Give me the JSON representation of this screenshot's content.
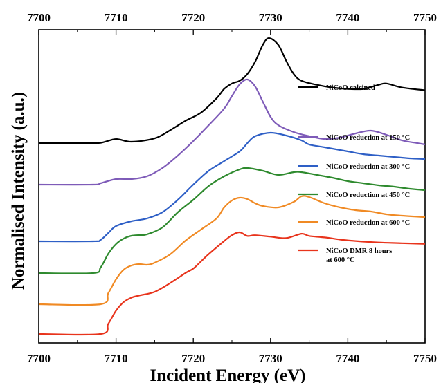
{
  "chart_data": {
    "type": "line",
    "title": "",
    "xlabel": "Incident Energy (eV)",
    "ylabel": "Normalised Intensity (a.u.)",
    "xlim": [
      7700,
      7750
    ],
    "x_ticks": [
      "7700",
      "7710",
      "7720",
      "7730",
      "7740",
      "7750"
    ],
    "y_ticks_shown": false,
    "grid": false,
    "legend_placement": "right (each label beside its curve)",
    "series": [
      {
        "name": "NiCoO calcined",
        "color": "#000000",
        "points": [
          [
            7700,
            0.0
          ],
          [
            7706,
            0.0
          ],
          [
            7708,
            0.004
          ],
          [
            7710,
            0.06
          ],
          [
            7712,
            0.02
          ],
          [
            7715,
            0.07
          ],
          [
            7717,
            0.19
          ],
          [
            7719,
            0.33
          ],
          [
            7721,
            0.45
          ],
          [
            7723,
            0.66
          ],
          [
            7724,
            0.8
          ],
          [
            7725,
            0.88
          ],
          [
            7726,
            0.92
          ],
          [
            7727,
            1.02
          ],
          [
            7728,
            1.2
          ],
          [
            7729,
            1.45
          ],
          [
            7729.8,
            1.55
          ],
          [
            7731,
            1.45
          ],
          [
            7732,
            1.22
          ],
          [
            7733,
            1.02
          ],
          [
            7734,
            0.92
          ],
          [
            7736,
            0.86
          ],
          [
            7738,
            0.82
          ],
          [
            7740,
            0.8
          ],
          [
            7742,
            0.8
          ],
          [
            7744,
            0.86
          ],
          [
            7745,
            0.88
          ],
          [
            7747,
            0.82
          ],
          [
            7750,
            0.78
          ]
        ]
      },
      {
        "name": "NiCoO reduction at 150 °C",
        "color": "#7e5bb8",
        "points": [
          [
            7700,
            0.0
          ],
          [
            7707,
            0.0
          ],
          [
            7708,
            0.02
          ],
          [
            7710,
            0.08
          ],
          [
            7712,
            0.08
          ],
          [
            7714,
            0.12
          ],
          [
            7716,
            0.24
          ],
          [
            7718,
            0.42
          ],
          [
            7720,
            0.63
          ],
          [
            7722,
            0.86
          ],
          [
            7724,
            1.1
          ],
          [
            7725,
            1.28
          ],
          [
            7726,
            1.45
          ],
          [
            7727,
            1.52
          ],
          [
            7728,
            1.42
          ],
          [
            7729,
            1.2
          ],
          [
            7730,
            0.98
          ],
          [
            7731,
            0.86
          ],
          [
            7733,
            0.76
          ],
          [
            7735,
            0.7
          ],
          [
            7737,
            0.66
          ],
          [
            7739,
            0.68
          ],
          [
            7741,
            0.74
          ],
          [
            7743,
            0.78
          ],
          [
            7745,
            0.72
          ],
          [
            7747,
            0.64
          ],
          [
            7749,
            0.6
          ],
          [
            7750,
            0.58
          ]
        ]
      },
      {
        "name": "NiCoO reduction at 300 °C",
        "color": "#2e5fc6",
        "points": [
          [
            7700,
            0.0
          ],
          [
            7707,
            0.0
          ],
          [
            7708,
            0.02
          ],
          [
            7709,
            0.12
          ],
          [
            7710,
            0.22
          ],
          [
            7712,
            0.29
          ],
          [
            7714,
            0.33
          ],
          [
            7716,
            0.42
          ],
          [
            7718,
            0.6
          ],
          [
            7720,
            0.82
          ],
          [
            7722,
            1.02
          ],
          [
            7724,
            1.16
          ],
          [
            7726,
            1.3
          ],
          [
            7727,
            1.42
          ],
          [
            7728,
            1.52
          ],
          [
            7730,
            1.57
          ],
          [
            7732,
            1.53
          ],
          [
            7734,
            1.46
          ],
          [
            7735,
            1.4
          ],
          [
            7737,
            1.36
          ],
          [
            7740,
            1.3
          ],
          [
            7742,
            1.26
          ],
          [
            7744,
            1.24
          ],
          [
            7746,
            1.22
          ],
          [
            7748,
            1.2
          ],
          [
            7750,
            1.19
          ]
        ]
      },
      {
        "name": "NiCoO reduction at 450 °C",
        "color": "#2e8a2e",
        "points": [
          [
            7700,
            0.0
          ],
          [
            7707,
            0.0
          ],
          [
            7708,
            0.08
          ],
          [
            7709,
            0.28
          ],
          [
            7710,
            0.42
          ],
          [
            7711,
            0.5
          ],
          [
            7712,
            0.54
          ],
          [
            7713,
            0.55
          ],
          [
            7714,
            0.56
          ],
          [
            7716,
            0.66
          ],
          [
            7718,
            0.88
          ],
          [
            7720,
            1.06
          ],
          [
            7722,
            1.26
          ],
          [
            7724,
            1.4
          ],
          [
            7726,
            1.5
          ],
          [
            7727,
            1.52
          ],
          [
            7729,
            1.48
          ],
          [
            7731,
            1.42
          ],
          [
            7733,
            1.46
          ],
          [
            7734,
            1.46
          ],
          [
            7736,
            1.42
          ],
          [
            7738,
            1.38
          ],
          [
            7740,
            1.33
          ],
          [
            7742,
            1.3
          ],
          [
            7744,
            1.27
          ],
          [
            7746,
            1.25
          ],
          [
            7748,
            1.22
          ],
          [
            7750,
            1.2
          ]
        ]
      },
      {
        "name": "NiCoO reduction at 600 °C",
        "color": "#f08a24",
        "points": [
          [
            7700,
            0.0
          ],
          [
            7708,
            0.0
          ],
          [
            7709,
            0.16
          ],
          [
            7710,
            0.36
          ],
          [
            7711,
            0.5
          ],
          [
            7712,
            0.56
          ],
          [
            7713,
            0.58
          ],
          [
            7714,
            0.57
          ],
          [
            7715,
            0.6
          ],
          [
            7717,
            0.72
          ],
          [
            7719,
            0.92
          ],
          [
            7721,
            1.08
          ],
          [
            7723,
            1.24
          ],
          [
            7724,
            1.4
          ],
          [
            7725,
            1.5
          ],
          [
            7726,
            1.54
          ],
          [
            7727,
            1.52
          ],
          [
            7728,
            1.46
          ],
          [
            7729,
            1.42
          ],
          [
            7731,
            1.4
          ],
          [
            7733,
            1.48
          ],
          [
            7734,
            1.56
          ],
          [
            7735,
            1.55
          ],
          [
            7737,
            1.46
          ],
          [
            7739,
            1.4
          ],
          [
            7741,
            1.36
          ],
          [
            7743,
            1.34
          ],
          [
            7745,
            1.3
          ],
          [
            7747,
            1.28
          ],
          [
            7750,
            1.26
          ]
        ]
      },
      {
        "name": "NiCoO DMR 8 hours at 600 °C",
        "color": "#e8341c",
        "points": [
          [
            7700,
            0.0
          ],
          [
            7708,
            0.0
          ],
          [
            7709,
            0.14
          ],
          [
            7710,
            0.32
          ],
          [
            7711,
            0.44
          ],
          [
            7712,
            0.5
          ],
          [
            7713,
            0.53
          ],
          [
            7715,
            0.58
          ],
          [
            7717,
            0.7
          ],
          [
            7719,
            0.84
          ],
          [
            7720,
            0.9
          ],
          [
            7721,
            1.0
          ],
          [
            7722,
            1.1
          ],
          [
            7724,
            1.28
          ],
          [
            7725,
            1.36
          ],
          [
            7726,
            1.4
          ],
          [
            7727,
            1.35
          ],
          [
            7728,
            1.36
          ],
          [
            7730,
            1.34
          ],
          [
            7732,
            1.32
          ],
          [
            7734,
            1.38
          ],
          [
            7735,
            1.35
          ],
          [
            7737,
            1.33
          ],
          [
            7739,
            1.3
          ],
          [
            7741,
            1.28
          ],
          [
            7744,
            1.26
          ],
          [
            7747,
            1.25
          ],
          [
            7750,
            1.24
          ]
        ]
      }
    ]
  }
}
